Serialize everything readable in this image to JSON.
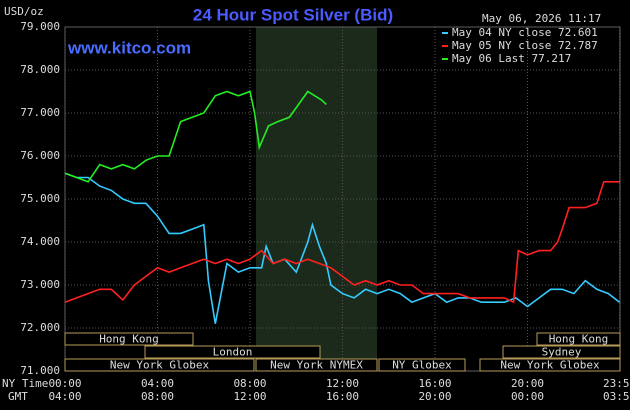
{
  "chart_data": {
    "type": "line",
    "title": "24 Hour Spot Silver (Bid)",
    "timestamp": "May 06, 2026 11:17",
    "y_label": "USD/oz",
    "watermark": "www.kitco.com",
    "x_axis_labels": [
      "NY Time",
      "GMT"
    ],
    "xlim": [
      0,
      24
    ],
    "xticks": [
      {
        "value": 0,
        "label": "00:00"
      },
      {
        "value": 4,
        "label": "04:00"
      },
      {
        "value": 8,
        "label": "08:00"
      },
      {
        "value": 12,
        "label": "12:00"
      },
      {
        "value": 16,
        "label": "16:00"
      },
      {
        "value": 20,
        "label": "20:00"
      },
      {
        "value": 23.98,
        "label": "23:59"
      }
    ],
    "gmt_labels": [
      "04:00",
      "08:00",
      "12:00",
      "16:00",
      "20:00",
      "00:00",
      "03:59"
    ],
    "ylim": [
      71,
      79
    ],
    "yticks": [
      {
        "value": 71,
        "label": "71.000"
      },
      {
        "value": 72,
        "label": "72.000"
      },
      {
        "value": 73,
        "label": "73.000"
      },
      {
        "value": 74,
        "label": "74.000"
      },
      {
        "value": 75,
        "label": "75.000"
      },
      {
        "value": 76,
        "label": "76.000"
      },
      {
        "value": 77,
        "label": "77.000"
      },
      {
        "value": 78,
        "label": "78.000"
      },
      {
        "value": 79,
        "label": "79.000"
      }
    ],
    "grid": true,
    "legend": "top-right",
    "sessions": [
      "Hong Kong",
      "London",
      "New York Globex",
      "New York NYMEX",
      "NY Globex",
      "Hong Kong",
      "Sydney",
      "New York Globex"
    ],
    "series": [
      {
        "name": "May 04 NY close 72.601",
        "color": "#33ccff",
        "x": [
          0,
          0.5,
          1,
          1.5,
          2,
          2.5,
          3,
          3.5,
          4,
          4.5,
          5,
          5.5,
          6,
          6.2,
          6.5,
          7,
          7.5,
          8,
          8.5,
          8.7,
          9,
          9.5,
          10,
          10.5,
          10.7,
          11,
          11.3,
          11.5,
          12,
          12.5,
          13,
          13.5,
          14,
          14.5,
          15,
          15.5,
          16,
          16.5,
          17,
          17.5,
          18,
          18.5,
          19,
          19.5,
          20,
          20.5,
          21,
          21.5,
          22,
          22.5,
          23,
          23.5,
          23.98
        ],
        "values": [
          75.6,
          75.5,
          75.5,
          75.3,
          75.2,
          75.0,
          74.9,
          74.9,
          74.6,
          74.2,
          74.2,
          74.3,
          74.4,
          73.1,
          72.1,
          73.5,
          73.3,
          73.4,
          73.4,
          73.9,
          73.5,
          73.6,
          73.3,
          74.0,
          74.4,
          73.9,
          73.5,
          73.0,
          72.8,
          72.7,
          72.9,
          72.8,
          72.9,
          72.8,
          72.6,
          72.7,
          72.8,
          72.6,
          72.7,
          72.7,
          72.6,
          72.6,
          72.6,
          72.7,
          72.5,
          72.7,
          72.9,
          72.9,
          72.8,
          73.1,
          72.9,
          72.8,
          72.6
        ]
      },
      {
        "name": "May 05 NY close 72.787",
        "color": "#ff2020",
        "x": [
          0,
          0.5,
          1,
          1.5,
          2,
          2.5,
          3,
          3.5,
          4,
          4.5,
          5,
          5.5,
          6,
          6.5,
          7,
          7.5,
          8,
          8.5,
          9,
          9.5,
          10,
          10.5,
          11,
          11.5,
          12,
          12.5,
          13,
          13.5,
          14,
          14.5,
          15,
          15.5,
          16,
          16.5,
          17,
          17.5,
          18,
          18.5,
          19,
          19.4,
          19.6,
          20,
          20.5,
          21,
          21.3,
          21.5,
          21.8,
          22,
          22.5,
          23,
          23.3,
          23.5,
          23.98
        ],
        "values": [
          72.6,
          72.7,
          72.8,
          72.9,
          72.9,
          72.65,
          73.0,
          73.2,
          73.4,
          73.3,
          73.4,
          73.5,
          73.6,
          73.5,
          73.6,
          73.5,
          73.6,
          73.8,
          73.5,
          73.6,
          73.5,
          73.6,
          73.5,
          73.4,
          73.2,
          73.0,
          73.1,
          73.0,
          73.1,
          73.0,
          73.0,
          72.8,
          72.8,
          72.8,
          72.8,
          72.7,
          72.7,
          72.7,
          72.7,
          72.6,
          73.8,
          73.7,
          73.8,
          73.8,
          74.0,
          74.3,
          74.8,
          74.8,
          74.8,
          74.9,
          75.4,
          75.4,
          75.4
        ]
      },
      {
        "name": "May 06 Last 77.217",
        "color": "#22ee22",
        "x": [
          0,
          0.5,
          1,
          1.5,
          2,
          2.5,
          3,
          3.5,
          4,
          4.5,
          5,
          5.5,
          6,
          6.5,
          7,
          7.5,
          8,
          8.2,
          8.4,
          8.8,
          9.2,
          9.7,
          10.1,
          10.5,
          10.8,
          11.1,
          11.3
        ],
        "values": [
          75.6,
          75.5,
          75.4,
          75.8,
          75.7,
          75.8,
          75.7,
          75.9,
          76.0,
          76.0,
          76.8,
          76.9,
          77.0,
          77.4,
          77.5,
          77.4,
          77.5,
          77.0,
          76.2,
          76.7,
          76.8,
          76.9,
          77.2,
          77.5,
          77.4,
          77.3,
          77.2
        ]
      }
    ]
  }
}
